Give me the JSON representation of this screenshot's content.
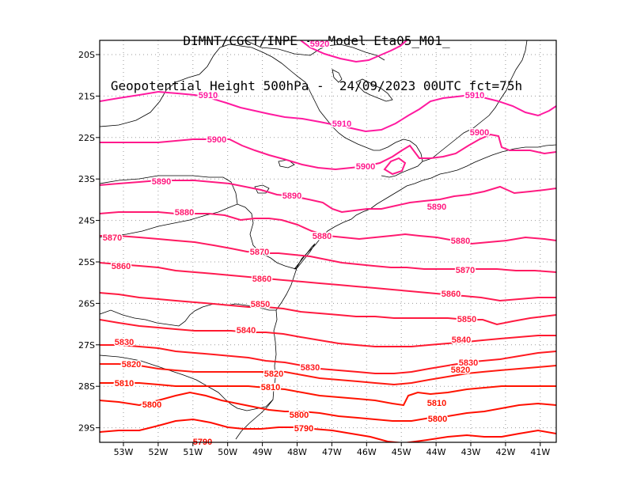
{
  "title": {
    "line1": "DIMNT/CGCT/INPE -  Model Eta05_M01_",
    "line2": "Geopotential Height 500hPa -  24/09/2023 00UTC fct=75h"
  },
  "axes": {
    "lon_labels": [
      "53W",
      "52W",
      "51W",
      "50W",
      "49W",
      "48W",
      "47W",
      "46W",
      "45W",
      "44W",
      "43W",
      "42W",
      "41W"
    ],
    "lat_labels": [
      "20S",
      "21S",
      "22S",
      "23S",
      "24S",
      "25S",
      "26S",
      "27S",
      "28S",
      "29S"
    ]
  },
  "contours": [
    {
      "value": 5920,
      "color": "#ff1aa0",
      "labels": [
        "5920"
      ]
    },
    {
      "value": 5910,
      "color": "#ff1aa0",
      "labels": [
        "5910",
        "5910",
        "5910"
      ]
    },
    {
      "value": 5900,
      "color": "#ff1a8c",
      "labels": [
        "5900",
        "5900",
        "5900"
      ]
    },
    {
      "value": 5890,
      "color": "#ff1a80",
      "labels": [
        "5890",
        "5890",
        "5890"
      ]
    },
    {
      "value": 5880,
      "color": "#ff1a70",
      "labels": [
        "5880",
        "5880",
        "5880"
      ]
    },
    {
      "value": 5870,
      "color": "#ff1a60",
      "labels": [
        "5870",
        "5870",
        "5870"
      ]
    },
    {
      "value": 5860,
      "color": "#ff1a50",
      "labels": [
        "5860",
        "5860",
        "5860"
      ]
    },
    {
      "value": 5850,
      "color": "#ff1a40",
      "labels": [
        "5850",
        "5850"
      ]
    },
    {
      "value": 5840,
      "color": "#ff1a30",
      "labels": [
        "5840",
        "5840"
      ]
    },
    {
      "value": 5830,
      "color": "#ff1a20",
      "labels": [
        "5830",
        "5830",
        "5830"
      ]
    },
    {
      "value": 5820,
      "color": "#ff1a10",
      "labels": [
        "5820",
        "5820",
        "5820"
      ]
    },
    {
      "value": 5810,
      "color": "#ff1400",
      "labels": [
        "5810",
        "5810",
        "5810"
      ]
    },
    {
      "value": 5800,
      "color": "#ff1000",
      "labels": [
        "5800",
        "5800",
        "5800"
      ]
    },
    {
      "value": 5790,
      "color": "#ff0c00",
      "labels": [
        "5790",
        "5790"
      ]
    }
  ],
  "colors": {
    "frame": "#000000",
    "grid": "#9a9a9a",
    "coast": "#000000"
  }
}
